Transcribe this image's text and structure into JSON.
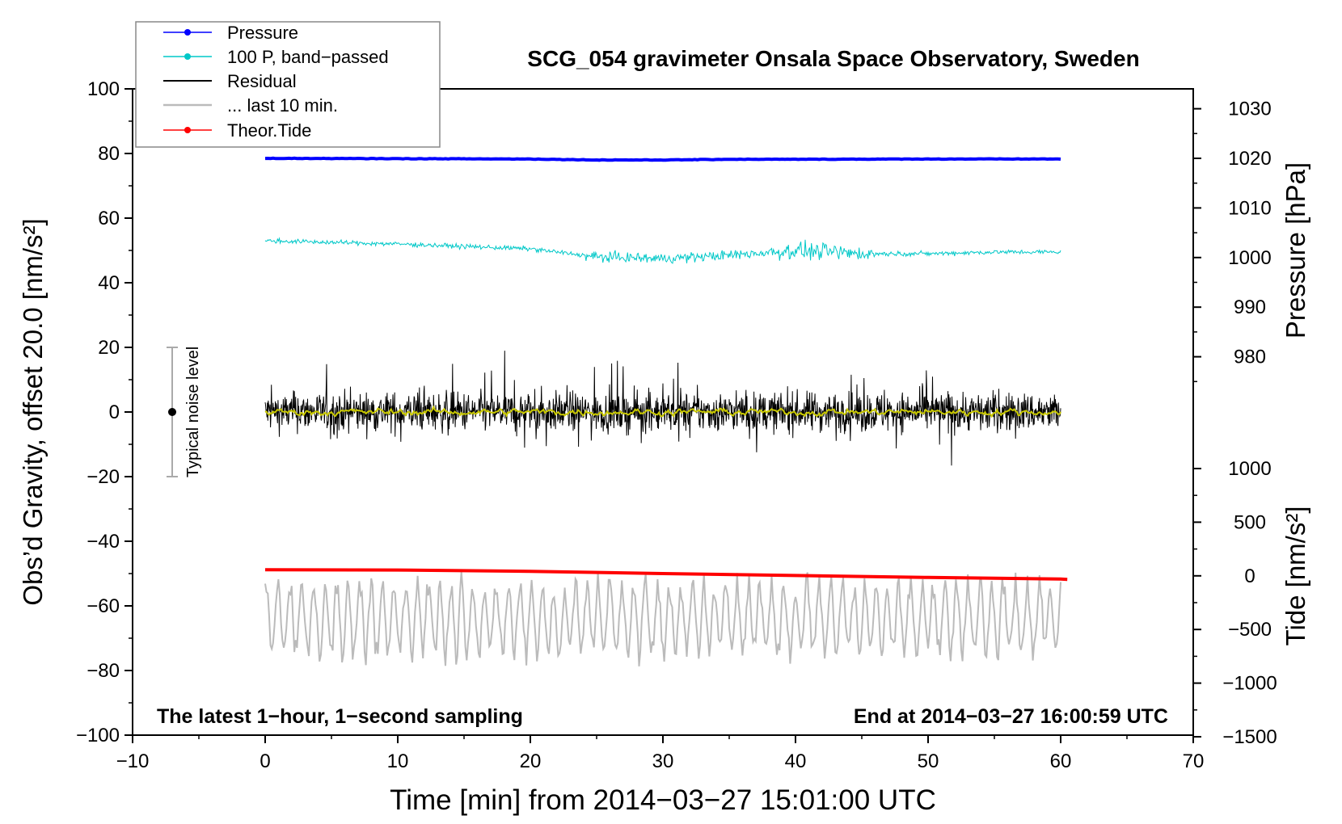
{
  "chart_data": {
    "type": "line",
    "title": "SCG_054 gravimeter Onsala Space Observatory, Sweden",
    "xlabel": "Time [min] from 2014−03−27 15:01:00 UTC",
    "ylabel_left": "Obs’d Gravity, offset 20.0 [nm/s²]",
    "ylabel_right_top": "Pressure [hPa]",
    "ylabel_right_bottom": "Tide [nm/s²]",
    "xlim": [
      -10,
      70
    ],
    "ylim": [
      -100,
      100
    ],
    "x_ticks": [
      "−10",
      "0",
      "10",
      "20",
      "30",
      "40",
      "50",
      "60",
      "70"
    ],
    "x_tick_values": [
      -10,
      0,
      10,
      20,
      30,
      40,
      50,
      60,
      70
    ],
    "y_ticks": [
      "100",
      "80",
      "60",
      "40",
      "20",
      "0",
      "−20",
      "−40",
      "−60",
      "−80",
      "−100"
    ],
    "y_tick_values": [
      100,
      80,
      60,
      40,
      20,
      0,
      -20,
      -40,
      -60,
      -80,
      -100
    ],
    "pressure_axis": {
      "ticks": [
        "1030",
        "1020",
        "1010",
        "1000",
        "990",
        "980"
      ],
      "tick_values": [
        1030,
        1020,
        1010,
        1000,
        990,
        980
      ],
      "left_axis_at_1020": 78.5,
      "left_units_per_hpa": 1.535
    },
    "tide_axis": {
      "ticks": [
        "1000",
        "500",
        "0",
        "−500",
        "−1000",
        "−1500"
      ],
      "tick_values": [
        1000,
        500,
        0,
        -500,
        -1000,
        -1500
      ],
      "left_axis_at_0": -50.7,
      "left_units_per_500": 16.6
    },
    "series": [
      {
        "name": "Pressure",
        "color": "#0000ff",
        "description_points": [
          [
            0,
            78.5
          ],
          [
            10,
            78.4
          ],
          [
            20,
            78.3
          ],
          [
            25,
            78.0
          ],
          [
            30,
            78.0
          ],
          [
            35,
            78.2
          ],
          [
            40,
            78.2
          ],
          [
            50,
            78.3
          ],
          [
            60,
            78.3
          ]
        ]
      },
      {
        "name": "100 P, band−passed",
        "color": "#00c8c8",
        "trend_points": [
          [
            0,
            53.0
          ],
          [
            10,
            52.0
          ],
          [
            20,
            50.5
          ],
          [
            25,
            48.0
          ],
          [
            30,
            47.5
          ],
          [
            35,
            48.5
          ],
          [
            40,
            50.0
          ],
          [
            45,
            49.0
          ],
          [
            50,
            49.0
          ],
          [
            55,
            49.5
          ],
          [
            60,
            49.5
          ]
        ]
      },
      {
        "name": "Residual",
        "color": "#000000",
        "center": 0,
        "range": [
          -25,
          23
        ]
      },
      {
        "name": "... last 10 min.",
        "color": "#bbbbbb",
        "center": -64,
        "range": [
          -80,
          -41
        ]
      },
      {
        "name": "Theor.Tide",
        "color": "#ff0000",
        "points": [
          [
            0,
            -48.8
          ],
          [
            10,
            -48.9
          ],
          [
            20,
            -49.3
          ],
          [
            30,
            -50.0
          ],
          [
            40,
            -50.6
          ],
          [
            50,
            -51.2
          ],
          [
            60,
            -51.7
          ],
          [
            60.5,
            -51.8
          ]
        ]
      },
      {
        "name": "smoothed residual",
        "color": "#c8c800",
        "center": 0
      }
    ],
    "noise_bar": {
      "label": "Typical noise level",
      "x": -7,
      "y": 0,
      "half_range": 20
    },
    "annotations": {
      "left": "The latest 1−hour, 1−second sampling",
      "right": "End at 2014−03−27 16:00:59 UTC"
    },
    "legend": {
      "position": "top-left",
      "entries": [
        "Pressure",
        "100 P, band−passed",
        "Residual",
        "... last 10 min.",
        "Theor.Tide"
      ]
    }
  }
}
